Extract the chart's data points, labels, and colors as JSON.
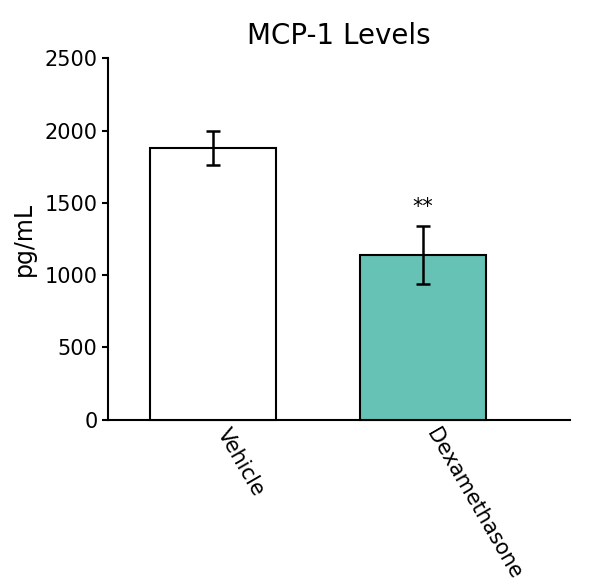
{
  "title": "MCP-1 Levels",
  "ylabel": "pg/mL",
  "categories": [
    "Vehicle",
    "Dexamethasone"
  ],
  "values": [
    1880,
    1140
  ],
  "errors": [
    120,
    200
  ],
  "bar_colors": [
    "#ffffff",
    "#66c2b5"
  ],
  "bar_edge_colors": [
    "#000000",
    "#000000"
  ],
  "bar_width": 0.6,
  "bar_positions": [
    0.5,
    1.5
  ],
  "ylim": [
    0,
    2500
  ],
  "yticks": [
    0,
    500,
    1000,
    1500,
    2000,
    2500
  ],
  "significance_label": "**",
  "sig_bar_index": 1,
  "title_fontsize": 20,
  "ylabel_fontsize": 17,
  "tick_fontsize": 15,
  "sig_fontsize": 15,
  "background_color": "#ffffff",
  "error_capsize": 5,
  "error_linewidth": 1.8,
  "bar_linewidth": 1.5,
  "xlim": [
    0.0,
    2.2
  ]
}
